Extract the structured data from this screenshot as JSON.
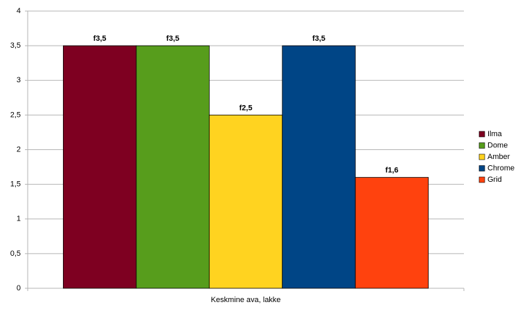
{
  "chart_data": {
    "type": "bar",
    "categories": [
      "Keskmine ava, lakke"
    ],
    "series": [
      {
        "name": "Ilma",
        "color": "#7e0021",
        "values": [
          3.5
        ],
        "value_labels": [
          "f3,5"
        ]
      },
      {
        "name": "Dome",
        "color": "#579d1c",
        "values": [
          3.5
        ],
        "value_labels": [
          "f3,5"
        ]
      },
      {
        "name": "Amber",
        "color": "#ffd320",
        "values": [
          2.5
        ],
        "value_labels": [
          "f2,5"
        ]
      },
      {
        "name": "Chrome",
        "color": "#004586",
        "values": [
          3.5
        ],
        "value_labels": [
          "f3,5"
        ]
      },
      {
        "name": "Grid",
        "color": "#ff420e",
        "values": [
          1.6
        ],
        "value_labels": [
          "f1,6"
        ]
      }
    ],
    "ylim": [
      0,
      4
    ],
    "yticks": [
      0,
      {
        "value": 0.5,
        "label": "0,5"
      },
      1,
      {
        "value": 1.5,
        "label": "1,5"
      },
      2,
      {
        "value": 2.5,
        "label": "2,5"
      },
      3,
      {
        "value": 3.5,
        "label": "3,5"
      },
      4
    ],
    "grid": true,
    "legend": "right"
  }
}
